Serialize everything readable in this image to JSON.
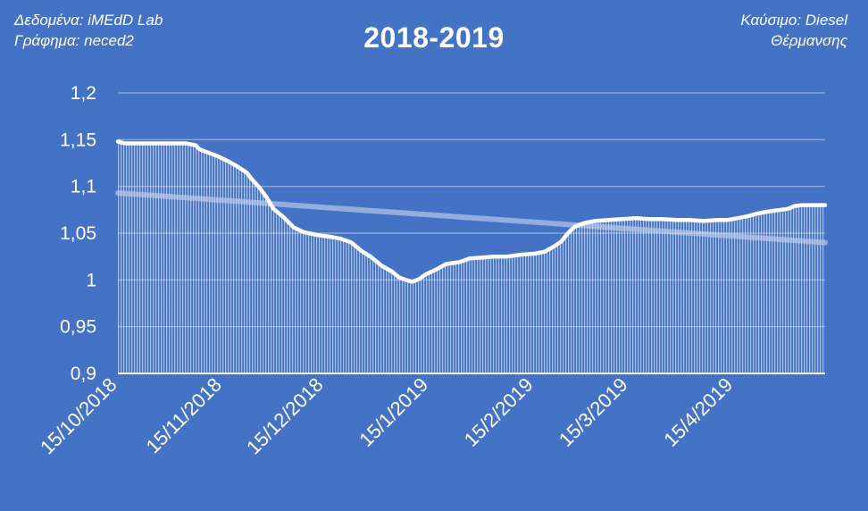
{
  "header": {
    "source_line": "Δεδομένα: iMEdD Lab",
    "chart_line": "Γράφημα: neced2",
    "fuel_line": "Καύσιμο: Diesel",
    "fuel_line2": "Θέρμανσης"
  },
  "colors": {
    "background": "#4472C4",
    "line": "#ffffff",
    "trendline": "#C9D6EE",
    "grid": "#ffffff"
  },
  "chart_data": {
    "type": "area",
    "title": "2018-2019",
    "xlabel": "",
    "ylabel": "",
    "ylim": [
      0.9,
      1.2
    ],
    "grid": true,
    "legend": "none",
    "y_ticks": [
      "1,2",
      "1,15",
      "1,1",
      "1,05",
      "1",
      "0,95",
      "0,9"
    ],
    "x_ticks": [
      "15/10/2018",
      "15/11/2018",
      "15/12/2018",
      "15/1/2019",
      "15/2/2019",
      "15/3/2019",
      "15/4/2019"
    ],
    "x_range": [
      "2018-10-15",
      "2019-05-12"
    ],
    "series": [
      {
        "points": [
          [
            "2018-10-15",
            1.148
          ],
          [
            "2018-10-17",
            1.146
          ],
          [
            "2018-10-20",
            1.146
          ],
          [
            "2018-10-25",
            1.146
          ],
          [
            "2018-10-30",
            1.146
          ],
          [
            "2018-11-04",
            1.146
          ],
          [
            "2018-11-07",
            1.144
          ],
          [
            "2018-11-08",
            1.14
          ],
          [
            "2018-11-10",
            1.137
          ],
          [
            "2018-11-13",
            1.133
          ],
          [
            "2018-11-16",
            1.128
          ],
          [
            "2018-11-19",
            1.122
          ],
          [
            "2018-11-22",
            1.115
          ],
          [
            "2018-11-24",
            1.106
          ],
          [
            "2018-11-26",
            1.098
          ],
          [
            "2018-11-28",
            1.088
          ],
          [
            "2018-11-30",
            1.076
          ],
          [
            "2018-12-03",
            1.067
          ],
          [
            "2018-12-06",
            1.056
          ],
          [
            "2018-12-09",
            1.051
          ],
          [
            "2018-12-13",
            1.048
          ],
          [
            "2018-12-17",
            1.046
          ],
          [
            "2018-12-20",
            1.044
          ],
          [
            "2018-12-23",
            1.04
          ],
          [
            "2018-12-26",
            1.031
          ],
          [
            "2018-12-29",
            1.024
          ],
          [
            "2019-01-01",
            1.015
          ],
          [
            "2019-01-04",
            1.009
          ],
          [
            "2019-01-06",
            1.003
          ],
          [
            "2019-01-08",
            1.0
          ],
          [
            "2019-01-10",
            0.998
          ],
          [
            "2019-01-12",
            1.001
          ],
          [
            "2019-01-14",
            1.006
          ],
          [
            "2019-01-17",
            1.011
          ],
          [
            "2019-01-20",
            1.017
          ],
          [
            "2019-01-24",
            1.019
          ],
          [
            "2019-01-27",
            1.023
          ],
          [
            "2019-01-31",
            1.024
          ],
          [
            "2019-02-03",
            1.025
          ],
          [
            "2019-02-07",
            1.025
          ],
          [
            "2019-02-11",
            1.027
          ],
          [
            "2019-02-15",
            1.028
          ],
          [
            "2019-02-18",
            1.03
          ],
          [
            "2019-02-21",
            1.036
          ],
          [
            "2019-02-23",
            1.041
          ],
          [
            "2019-02-25",
            1.05
          ],
          [
            "2019-02-27",
            1.057
          ],
          [
            "2019-03-02",
            1.061
          ],
          [
            "2019-03-05",
            1.063
          ],
          [
            "2019-03-09",
            1.064
          ],
          [
            "2019-03-13",
            1.065
          ],
          [
            "2019-03-17",
            1.066
          ],
          [
            "2019-03-21",
            1.065
          ],
          [
            "2019-03-25",
            1.065
          ],
          [
            "2019-03-29",
            1.064
          ],
          [
            "2019-04-02",
            1.064
          ],
          [
            "2019-04-06",
            1.063
          ],
          [
            "2019-04-10",
            1.064
          ],
          [
            "2019-04-13",
            1.064
          ],
          [
            "2019-04-16",
            1.066
          ],
          [
            "2019-04-19",
            1.068
          ],
          [
            "2019-04-22",
            1.071
          ],
          [
            "2019-04-25",
            1.073
          ],
          [
            "2019-04-29",
            1.075
          ],
          [
            "2019-05-01",
            1.076
          ],
          [
            "2019-05-03",
            1.079
          ],
          [
            "2019-05-05",
            1.08
          ],
          [
            "2019-05-08",
            1.08
          ],
          [
            "2019-05-12",
            1.08
          ]
        ]
      }
    ],
    "trendline": {
      "points": [
        [
          "2018-10-15",
          1.093
        ],
        [
          "2019-05-12",
          1.04
        ]
      ]
    }
  }
}
